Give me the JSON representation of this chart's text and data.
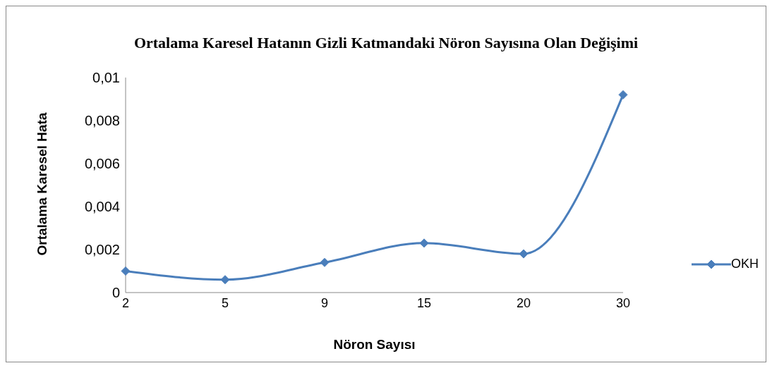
{
  "chart_data": {
    "type": "line",
    "title": "Ortalama Karesel Hatanın Gizli Katmandaki Nöron Sayısına Olan Değişimi",
    "xlabel": "Nöron Sayısı",
    "ylabel": "Ortalama Karesel Hata",
    "categories": [
      "2",
      "5",
      "9",
      "15",
      "20",
      "30"
    ],
    "series": [
      {
        "name": "OKH",
        "color": "#4a7ebb",
        "values": [
          0.001,
          0.0006,
          0.0014,
          0.0023,
          0.0018,
          0.0092
        ]
      }
    ],
    "ylim": [
      0,
      0.01
    ],
    "yticks": [
      {
        "value": 0,
        "label": "0"
      },
      {
        "value": 0.002,
        "label": "0,002"
      },
      {
        "value": 0.004,
        "label": "0,004"
      },
      {
        "value": 0.006,
        "label": "0,006"
      },
      {
        "value": 0.008,
        "label": "0,008"
      },
      {
        "value": 0.01,
        "label": "0,01"
      }
    ],
    "grid": false,
    "legend": "right",
    "marker": "diamond",
    "line_style": "solid"
  }
}
